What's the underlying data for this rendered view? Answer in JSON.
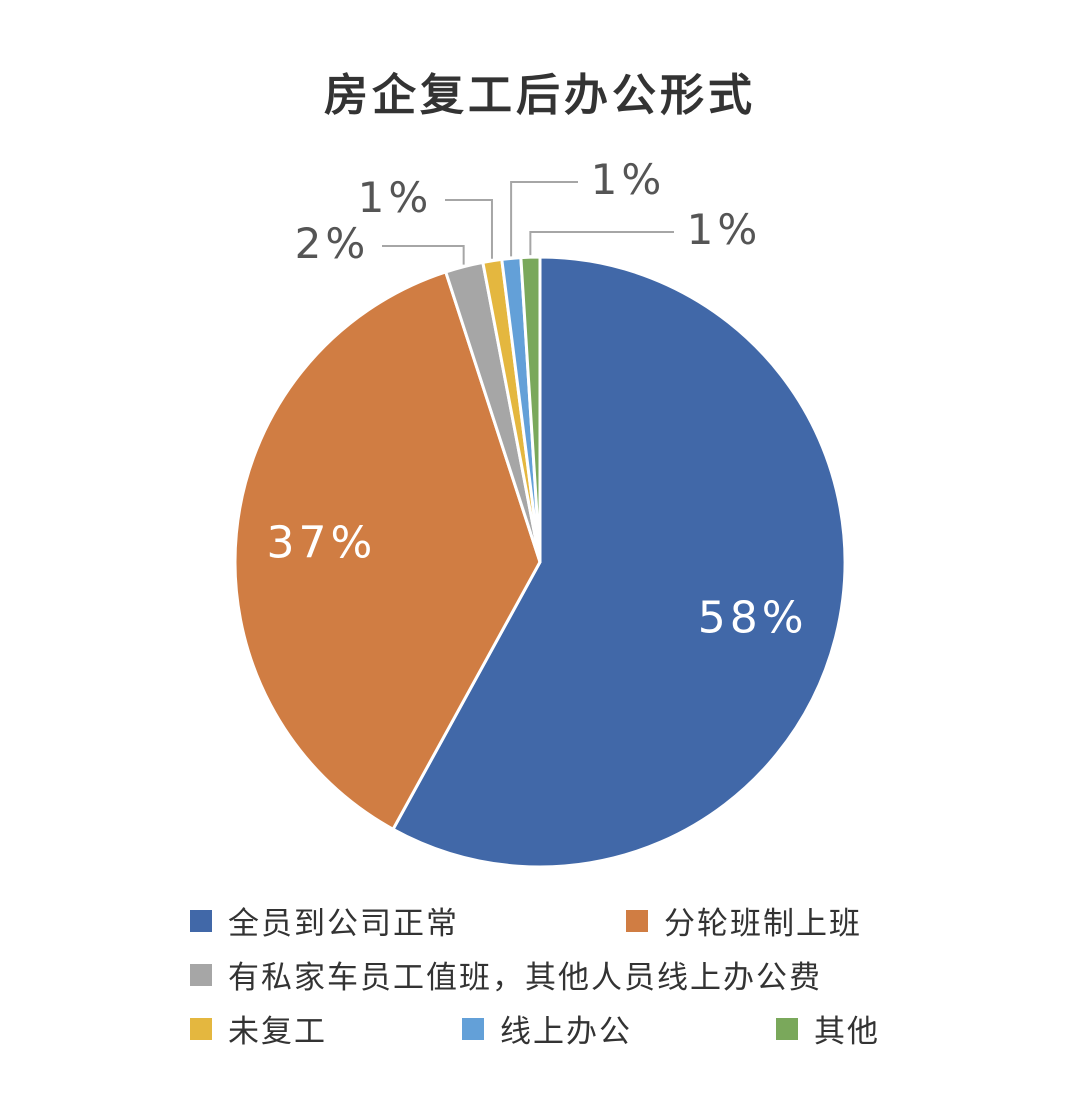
{
  "chart_data": {
    "type": "pie",
    "title": "房企复工后办公形式",
    "slices": [
      {
        "label": "全员到公司正常",
        "value": 58,
        "display": "58%",
        "color": "#4168A8"
      },
      {
        "label": "分轮班制上班",
        "value": 37,
        "display": "37%",
        "color": "#D07D43"
      },
      {
        "label": "有私家车员工值班，其他人员线上办公费",
        "value": 2,
        "display": "2%",
        "color": "#A6A6A6"
      },
      {
        "label": "未复工",
        "value": 1,
        "display": "1%",
        "color": "#E4B73F"
      },
      {
        "label": "线上办公",
        "value": 1,
        "display": "1%",
        "color": "#63A0D8"
      },
      {
        "label": "其他",
        "value": 1,
        "display": "1%",
        "color": "#7AA85B"
      }
    ],
    "legend_position": "bottom"
  }
}
